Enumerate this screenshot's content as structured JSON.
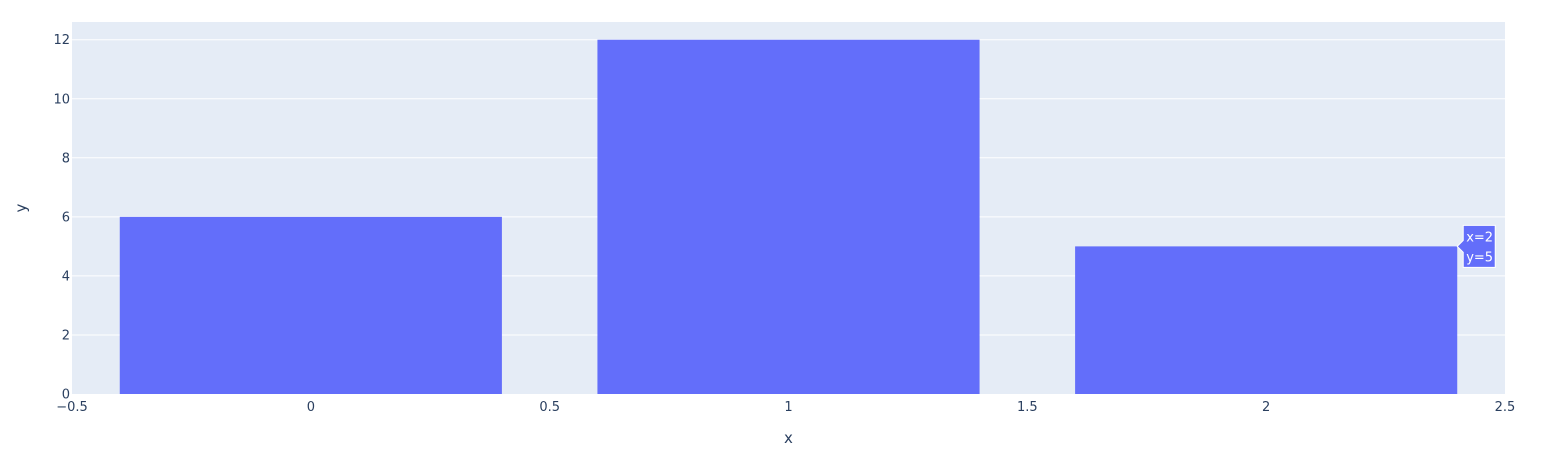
{
  "chart_data": {
    "type": "bar",
    "x": [
      0,
      1,
      2
    ],
    "values": [
      6,
      12,
      5
    ],
    "xlabel": "x",
    "ylabel": "y",
    "xlim": [
      -0.5,
      2.5
    ],
    "ylim": [
      0,
      12.6
    ],
    "xticks": [
      -0.5,
      0,
      0.5,
      1,
      1.5,
      2,
      2.5
    ],
    "xtick_labels": [
      "−0.5",
      "0",
      "0.5",
      "1",
      "1.5",
      "2",
      "2.5"
    ],
    "yticks": [
      0,
      2,
      4,
      6,
      8,
      10,
      12
    ],
    "ytick_labels": [
      "0",
      "2",
      "4",
      "6",
      "8",
      "10",
      "12"
    ],
    "grid": true,
    "bar_color": "#636efa",
    "plot_background": "#e5ecf6",
    "hover": {
      "bar_index": 2,
      "line1": "x=2",
      "line2": "y=5"
    }
  }
}
